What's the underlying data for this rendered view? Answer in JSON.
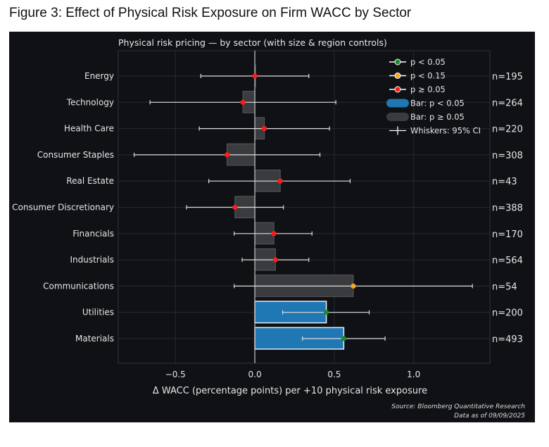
{
  "figure_title": "Figure 3: Effect of Physical Risk Exposure on Firm WACC by Sector",
  "chart_data": {
    "type": "bar",
    "orientation": "horizontal",
    "title": "Physical risk pricing — by sector (with size & region controls)",
    "xlabel": "Δ WACC (percentage points) per +10 physical risk exposure",
    "ylabel": "",
    "xlim": [
      -0.86,
      1.48
    ],
    "xticks": [
      -0.5,
      0.0,
      0.5,
      1.0
    ],
    "xtick_labels": [
      "−0.5",
      "0.0",
      "0.5",
      "1.0"
    ],
    "grid": true,
    "legend_position": "top-right",
    "categories": [
      "Energy",
      "Technology",
      "Health Care",
      "Consumer Staples",
      "Real Estate",
      "Consumer Discretionary",
      "Financials",
      "Industrials",
      "Communications",
      "Utilities",
      "Materials"
    ],
    "values": [
      0.0,
      -0.075,
      0.06,
      -0.175,
      0.16,
      -0.125,
      0.12,
      0.13,
      0.62,
      0.45,
      0.56
    ],
    "ci_low": [
      -0.34,
      -0.66,
      -0.35,
      -0.76,
      -0.29,
      -0.43,
      -0.13,
      -0.08,
      -0.13,
      0.175,
      0.3
    ],
    "ci_high": [
      0.34,
      0.51,
      0.47,
      0.41,
      0.6,
      0.18,
      0.36,
      0.34,
      1.37,
      0.72,
      0.82
    ],
    "significance": [
      "ns",
      "ns",
      "ns",
      "ns",
      "ns",
      "ns",
      "ns",
      "ns",
      "p15",
      "p05",
      "p05"
    ],
    "n_labels": [
      "n=195",
      "n=264",
      "n=220",
      "n=308",
      "n=43",
      "n=388",
      "n=170",
      "n=564",
      "n=54",
      "n=200",
      "n=493"
    ],
    "legend": [
      {
        "label": "p < 0.05",
        "kind": "marker",
        "color": "#1f8a2a"
      },
      {
        "label": "p < 0.15",
        "kind": "marker",
        "color": "#f5a623"
      },
      {
        "label": "p ≥ 0.05",
        "kind": "marker",
        "color": "#ff1a1a"
      },
      {
        "label": "Bar: p < 0.05",
        "kind": "bar",
        "color": "#1f77b4"
      },
      {
        "label": "Bar: p ≥ 0.05",
        "kind": "bar",
        "color": "#3a3b3f"
      },
      {
        "label": "Whiskers: 95% CI",
        "kind": "whisker",
        "color": "#dddddd"
      }
    ],
    "colors": {
      "background": "#0f1115",
      "bar_sig": "#1f77b4",
      "bar_ns": "#3a3b3f",
      "marker_p05": "#1f8a2a",
      "marker_p15": "#f5a623",
      "marker_ns": "#ff1a1a",
      "grid": "#262a30",
      "text": "#e6e6e6"
    }
  },
  "source_note": "Source: Bloomberg Quantitative Research",
  "date_note": "Data as of 09/09/2025"
}
